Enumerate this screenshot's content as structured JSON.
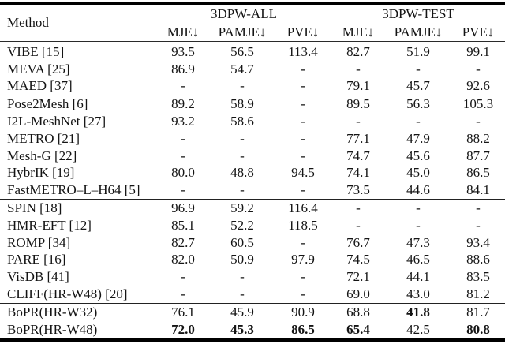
{
  "paper_table": {
    "method_header": "Method",
    "column_groups": [
      {
        "label": "3DPW-ALL",
        "sub_headers": [
          "MJE↓",
          "PAMJE↓",
          "PVE↓"
        ]
      },
      {
        "label": "3DPW-TEST",
        "sub_headers": [
          "MJE↓",
          "PAMJE↓",
          "PVE↓"
        ]
      }
    ],
    "groups": [
      {
        "rows": [
          {
            "method": "VIBE [15]",
            "values": [
              "93.5",
              "56.5",
              "113.4",
              "82.7",
              "51.9",
              "99.1"
            ],
            "bold": [
              false,
              false,
              false,
              false,
              false,
              false
            ]
          },
          {
            "method": "MEVA [25]",
            "values": [
              "86.9",
              "54.7",
              "-",
              "-",
              "-",
              "-"
            ],
            "bold": [
              false,
              false,
              false,
              false,
              false,
              false
            ]
          },
          {
            "method": "MAED [37]",
            "values": [
              "-",
              "-",
              "-",
              "79.1",
              "45.7",
              "92.6"
            ],
            "bold": [
              false,
              false,
              false,
              false,
              false,
              false
            ]
          }
        ]
      },
      {
        "rows": [
          {
            "method": "Pose2Mesh [6]",
            "values": [
              "89.2",
              "58.9",
              "-",
              "89.5",
              "56.3",
              "105.3"
            ],
            "bold": [
              false,
              false,
              false,
              false,
              false,
              false
            ]
          },
          {
            "method": "I2L-MeshNet [27]",
            "values": [
              "93.2",
              "58.6",
              "-",
              "-",
              "-",
              "-"
            ],
            "bold": [
              false,
              false,
              false,
              false,
              false,
              false
            ]
          },
          {
            "method": "METRO [21]",
            "values": [
              "-",
              "-",
              "-",
              "77.1",
              "47.9",
              "88.2"
            ],
            "bold": [
              false,
              false,
              false,
              false,
              false,
              false
            ]
          },
          {
            "method": "Mesh-G [22]",
            "values": [
              "-",
              "-",
              "-",
              "74.7",
              "45.6",
              "87.7"
            ],
            "bold": [
              false,
              false,
              false,
              false,
              false,
              false
            ]
          },
          {
            "method": "HybrIK [19]",
            "values": [
              "80.0",
              "48.8",
              "94.5",
              "74.1",
              "45.0",
              "86.5"
            ],
            "bold": [
              false,
              false,
              false,
              false,
              false,
              false
            ]
          },
          {
            "method": "FastMETRO–L–H64 [5]",
            "values": [
              "-",
              "-",
              "-",
              "73.5",
              "44.6",
              "84.1"
            ],
            "bold": [
              false,
              false,
              false,
              false,
              false,
              false
            ]
          }
        ]
      },
      {
        "rows": [
          {
            "method": "SPIN [18]",
            "values": [
              "96.9",
              "59.2",
              "116.4",
              "-",
              "-",
              "-"
            ],
            "bold": [
              false,
              false,
              false,
              false,
              false,
              false
            ]
          },
          {
            "method": "HMR-EFT [12]",
            "values": [
              "85.1",
              "52.2",
              "118.5",
              "-",
              "-",
              "-"
            ],
            "bold": [
              false,
              false,
              false,
              false,
              false,
              false
            ]
          },
          {
            "method": "ROMP [34]",
            "values": [
              "82.7",
              "60.5",
              "-",
              "76.7",
              "47.3",
              "93.4"
            ],
            "bold": [
              false,
              false,
              false,
              false,
              false,
              false
            ]
          },
          {
            "method": "PARE [16]",
            "values": [
              "82.0",
              "50.9",
              "97.9",
              "74.5",
              "46.5",
              "88.6"
            ],
            "bold": [
              false,
              false,
              false,
              false,
              false,
              false
            ]
          },
          {
            "method": "VisDB [41]",
            "values": [
              "-",
              "-",
              "-",
              "72.1",
              "44.1",
              "83.5"
            ],
            "bold": [
              false,
              false,
              false,
              false,
              false,
              false
            ]
          },
          {
            "method": "CLIFF(HR-W48) [20]",
            "values": [
              "-",
              "-",
              "-",
              "69.0",
              "43.0",
              "81.2"
            ],
            "bold": [
              false,
              false,
              false,
              false,
              false,
              false
            ]
          }
        ]
      },
      {
        "rows": [
          {
            "method": "BoPR(HR-W32)",
            "values": [
              "76.1",
              "45.9",
              "90.9",
              "68.8",
              "41.8",
              "81.7"
            ],
            "bold": [
              false,
              false,
              false,
              false,
              true,
              false
            ]
          },
          {
            "method": "BoPR(HR-W48)",
            "values": [
              "72.0",
              "45.3",
              "86.5",
              "65.4",
              "42.5",
              "80.8"
            ],
            "bold": [
              true,
              true,
              true,
              true,
              false,
              true
            ]
          }
        ]
      }
    ],
    "colors": {
      "text": "#141414",
      "rule": "#000000",
      "background": "#ffffff"
    }
  }
}
